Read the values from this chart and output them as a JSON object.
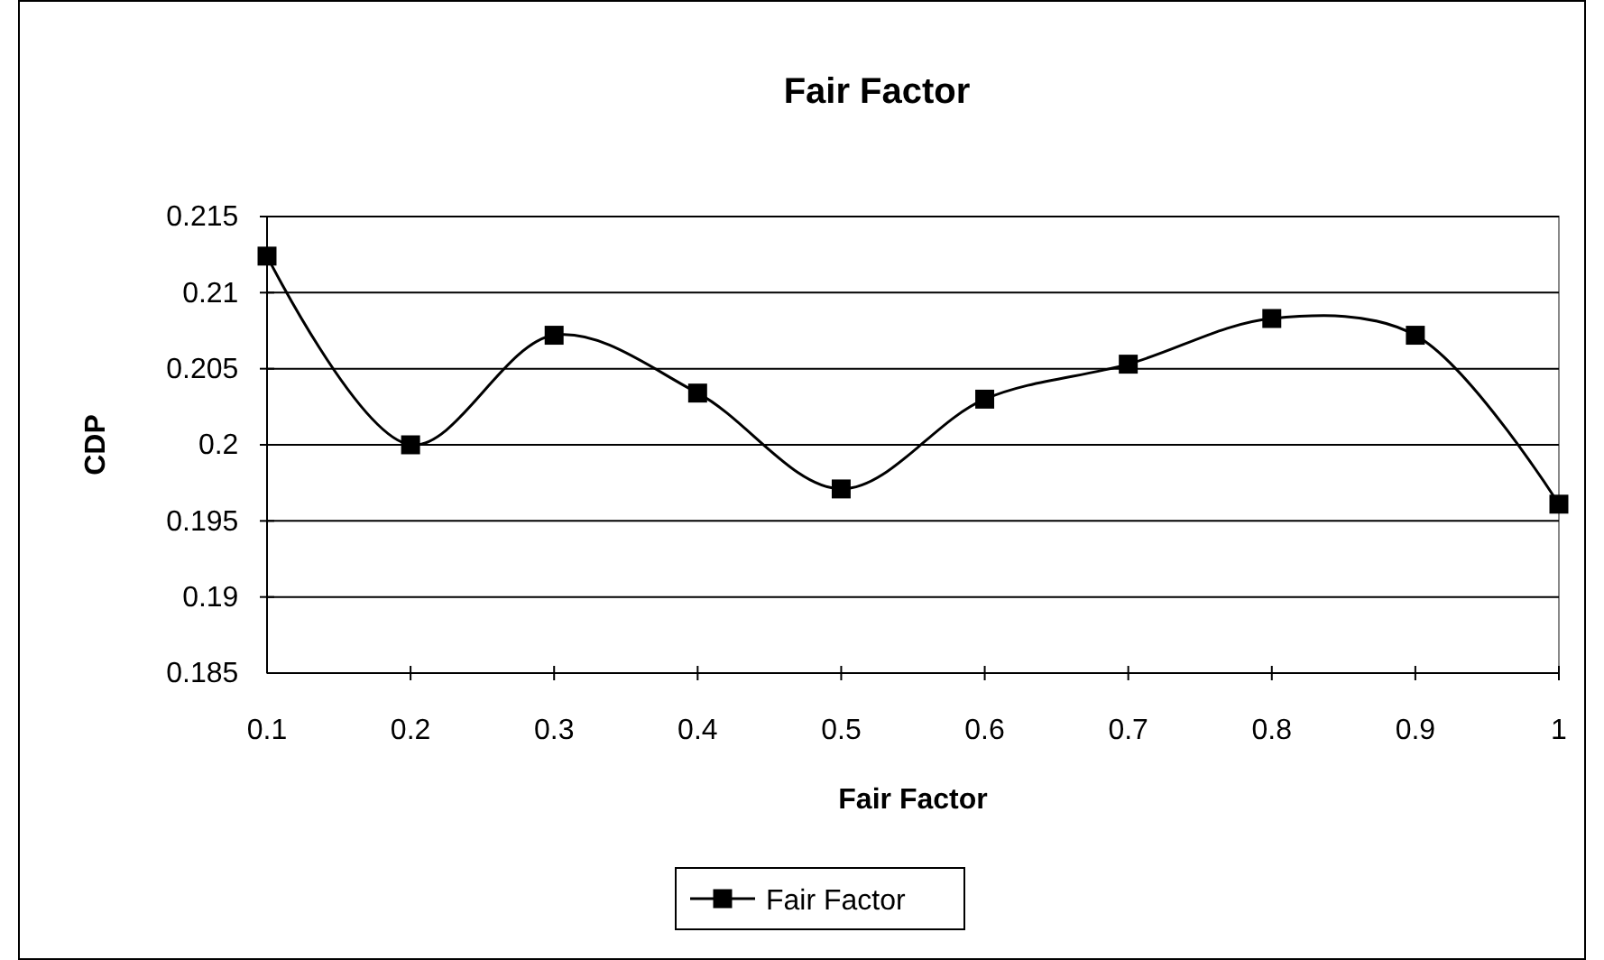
{
  "chart_data": {
    "type": "line",
    "title": "Fair Factor",
    "xlabel": "Fair Factor",
    "ylabel": "CDP",
    "x": [
      0.1,
      0.2,
      0.3,
      0.4,
      0.5,
      0.6,
      0.7,
      0.8,
      0.9,
      1
    ],
    "series": [
      {
        "name": "Fair Factor",
        "color": "#000000",
        "values": [
          0.2124,
          0.2,
          0.2072,
          0.2034,
          0.1971,
          0.203,
          0.2053,
          0.2083,
          0.2072,
          0.1961
        ]
      }
    ],
    "xlim": [
      0.1,
      1
    ],
    "xticks": [
      0.1,
      0.2,
      0.3,
      0.4,
      0.5,
      0.6,
      0.7,
      0.8,
      0.9,
      1
    ],
    "ylim": [
      0.185,
      0.215
    ],
    "yticks": [
      0.185,
      0.19,
      0.195,
      0.2,
      0.205,
      0.21,
      0.215
    ],
    "grid": "y",
    "legend": "bottom",
    "marker": "square",
    "line_style": "solid"
  }
}
